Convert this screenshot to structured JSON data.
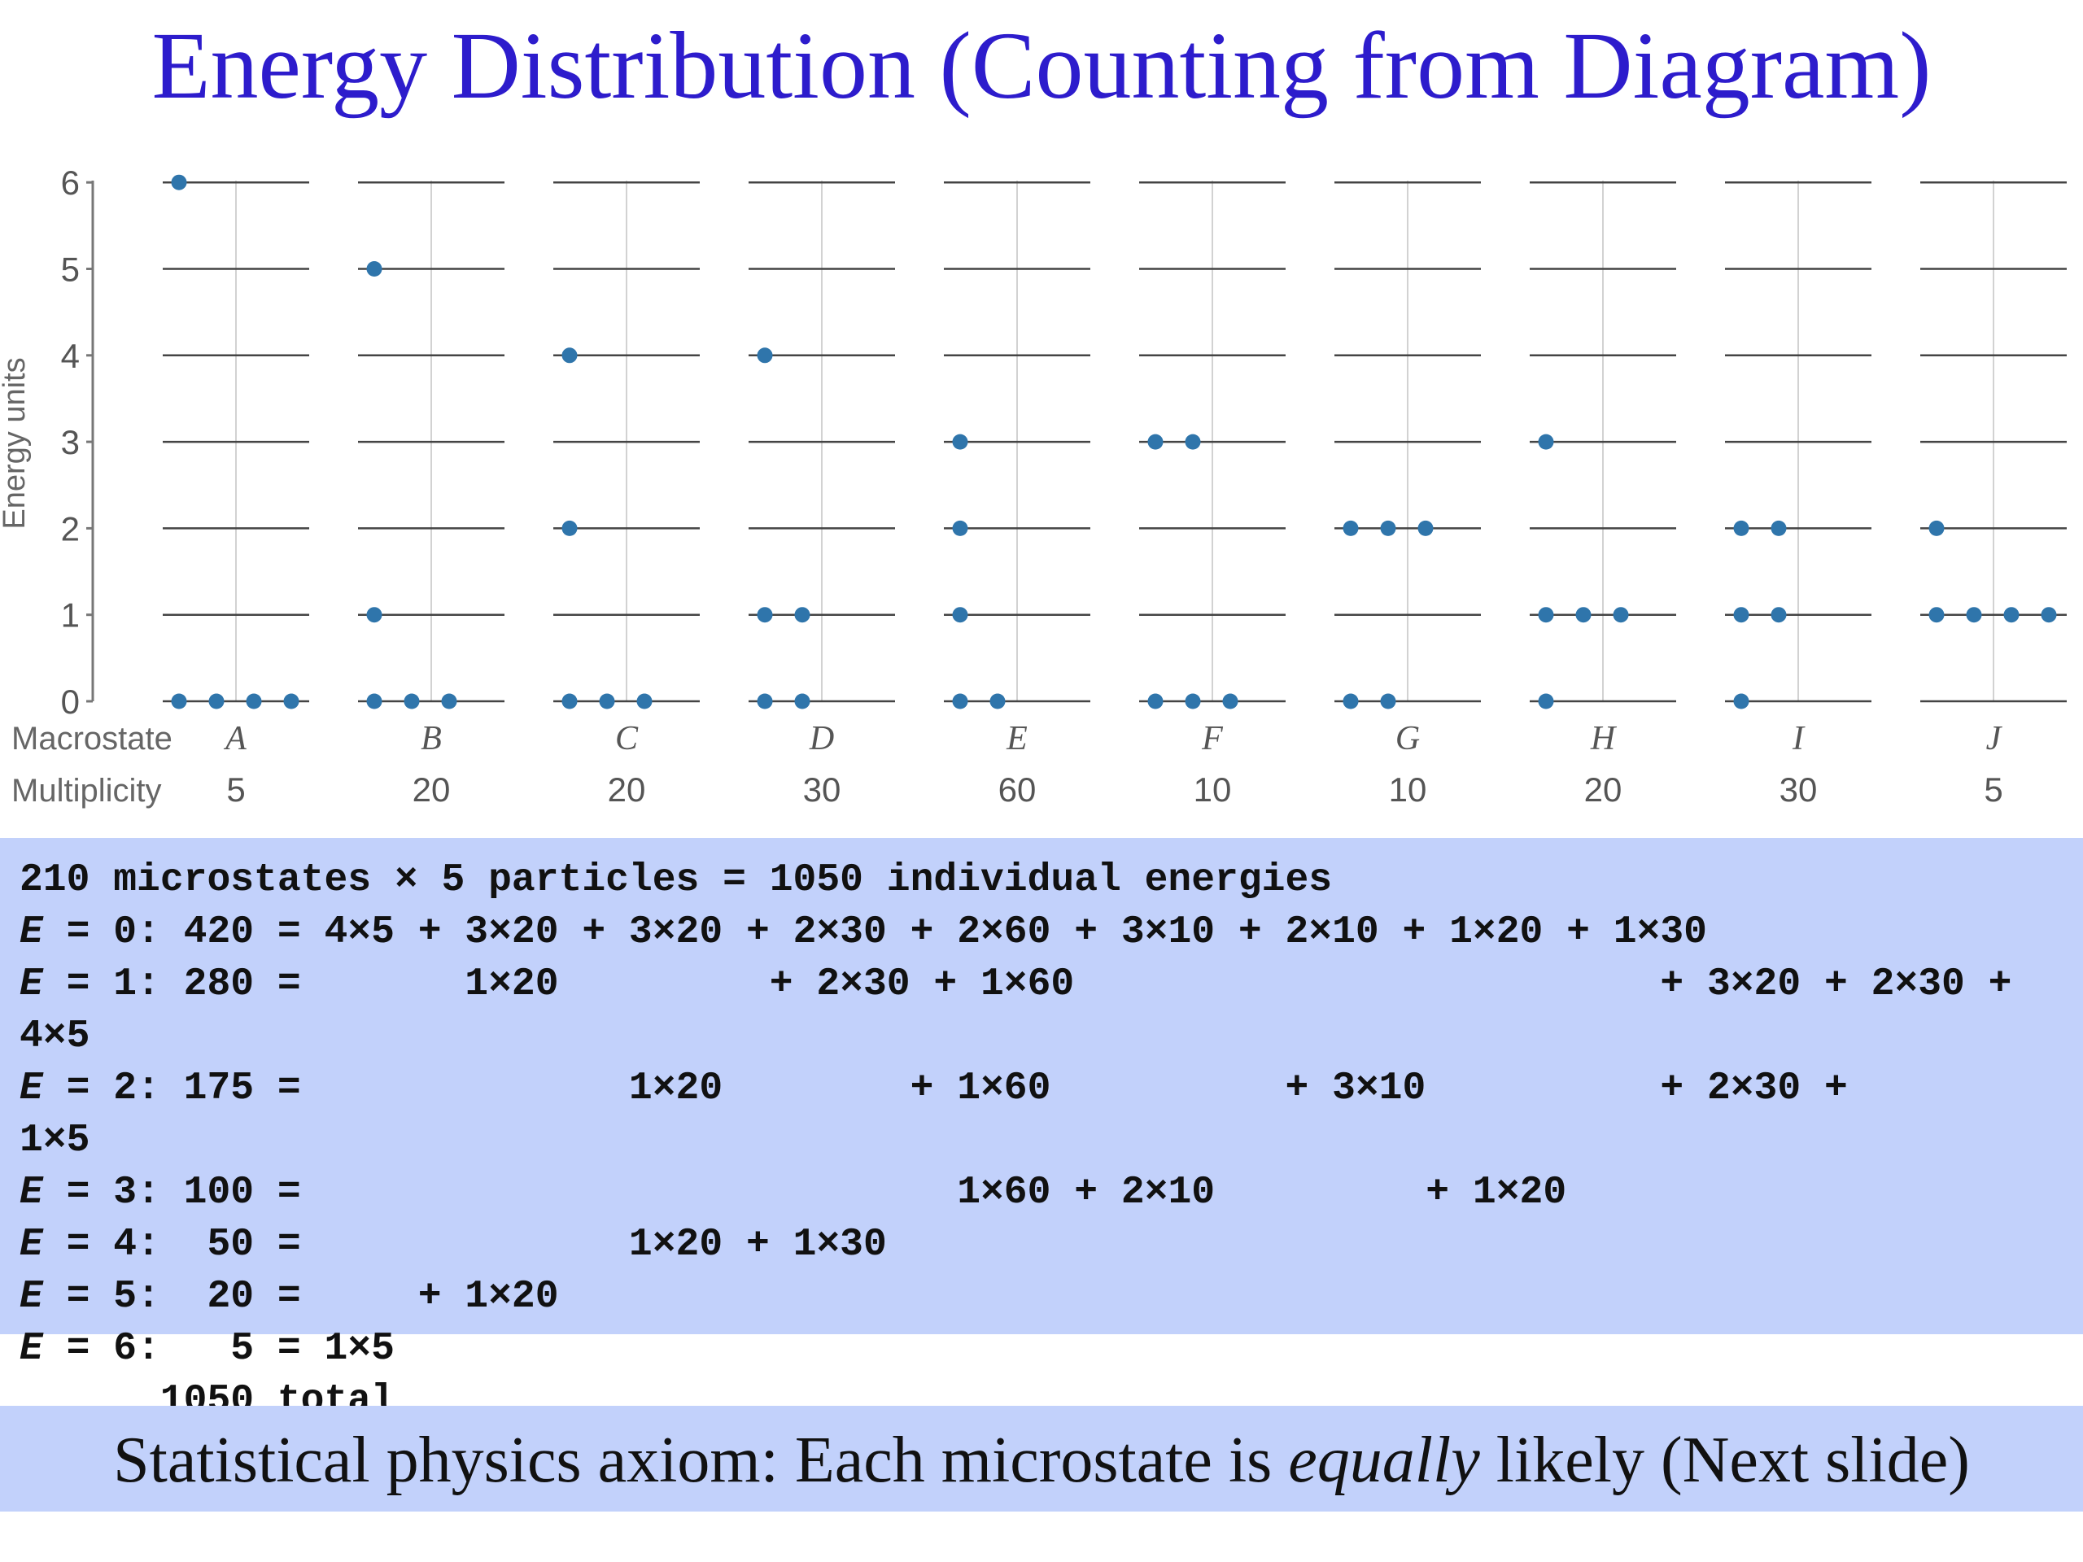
{
  "title": "Energy Distribution (Counting from Diagram)",
  "chart_data": {
    "type": "scatter",
    "ylabel": "Energy units",
    "ylim": [
      0,
      6
    ],
    "yticks": [
      "0",
      "1",
      "2",
      "3",
      "4",
      "5",
      "6"
    ],
    "row_labels": {
      "macrostate": "Macrostate",
      "multiplicity": "Multiplicity"
    },
    "macrostates": [
      {
        "name": "A",
        "multiplicity": "5",
        "particles": [
          6,
          0,
          0,
          0,
          0
        ]
      },
      {
        "name": "B",
        "multiplicity": "20",
        "particles": [
          5,
          1,
          0,
          0,
          0
        ]
      },
      {
        "name": "C",
        "multiplicity": "20",
        "particles": [
          4,
          2,
          0,
          0,
          0
        ]
      },
      {
        "name": "D",
        "multiplicity": "30",
        "particles": [
          4,
          1,
          1,
          0,
          0
        ]
      },
      {
        "name": "E",
        "multiplicity": "60",
        "particles": [
          3,
          2,
          1,
          0,
          0
        ]
      },
      {
        "name": "F",
        "multiplicity": "10",
        "particles": [
          3,
          3,
          0,
          0,
          0
        ]
      },
      {
        "name": "G",
        "multiplicity": "10",
        "particles": [
          2,
          2,
          2,
          0,
          0
        ]
      },
      {
        "name": "H",
        "multiplicity": "20",
        "particles": [
          3,
          1,
          1,
          1,
          0
        ]
      },
      {
        "name": "I",
        "multiplicity": "30",
        "particles": [
          2,
          2,
          1,
          1,
          0
        ]
      },
      {
        "name": "J",
        "multiplicity": "5",
        "particles": [
          2,
          1,
          1,
          1,
          1
        ]
      }
    ],
    "dot_color": "#2f75ab",
    "grid": true
  },
  "calculation": {
    "lines": [
      {
        "label": "",
        "text": "210 microstates × 5 particles = 1050 individual energies"
      },
      {
        "label": "E",
        "text": " = 0: 420 = 4×5 + 3×20 + 3×20 + 2×30 + 2×60 + 3×10 + 2×10 + 1×20 + 1×30"
      },
      {
        "label": "E",
        "text": " = 1: 280 =       1×20         + 2×30 + 1×60                         + 3×20 + 2×30 +"
      },
      {
        "label": "",
        "text": "4×5"
      },
      {
        "label": "E",
        "text": " = 2: 175 =              1×20        + 1×60          + 3×10          + 2×30 +"
      },
      {
        "label": "",
        "text": "1×5"
      },
      {
        "label": "E",
        "text": " = 3: 100 =                            1×60 + 2×10         + 1×20"
      },
      {
        "label": "E",
        "text": " = 4:  50 =              1×20 + 1×30"
      },
      {
        "label": "E",
        "text": " = 5:  20 =     + 1×20"
      },
      {
        "label": "E",
        "text": " = 6:   5 = 1×5"
      },
      {
        "label": "",
        "text": "      1050 total"
      }
    ]
  },
  "axiom": {
    "before": "Statistical physics axiom: Each microstate is ",
    "emphasis": "equally",
    "after": " likely (Next slide)"
  },
  "colors": {
    "title": "#2d1ccc",
    "highlight": "#c2d1fb",
    "dot": "#2f75ab"
  }
}
